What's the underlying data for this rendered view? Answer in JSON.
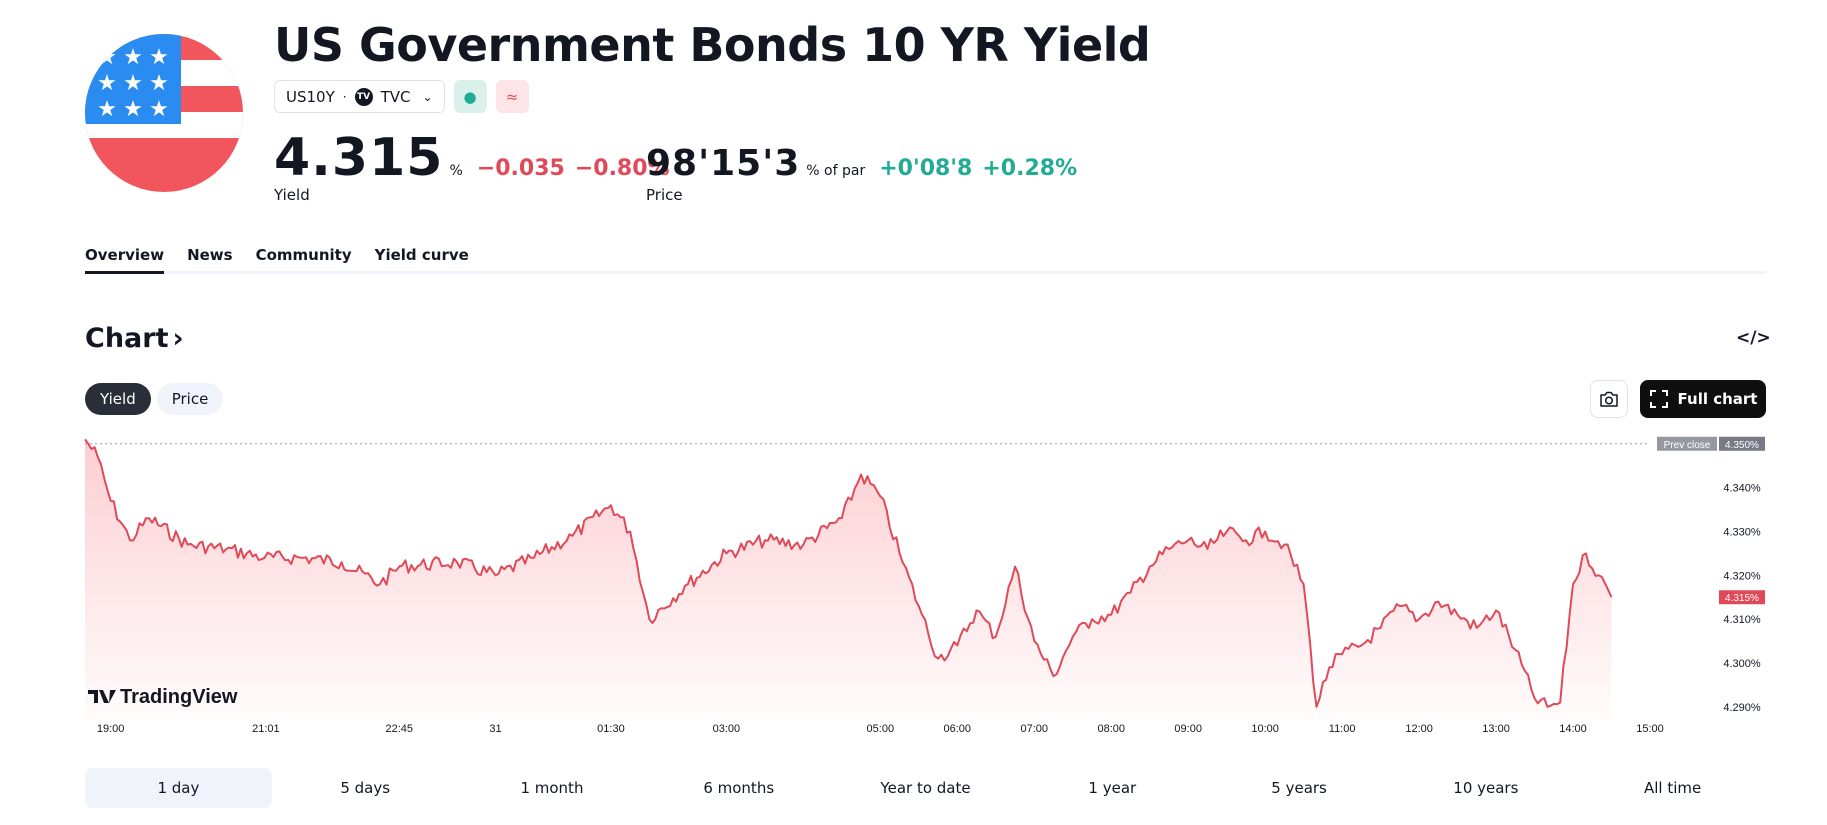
{
  "header": {
    "title": "US Government Bonds 10 YR Yield",
    "flag_icon": "us-flag-icon",
    "ticker": "US10Y",
    "separator": "·",
    "exchange": "TVC",
    "exchange_badge": "TV",
    "market_status_icon": "●",
    "delay_icon": "≈"
  },
  "yield_quote": {
    "value": "4.315",
    "unit": "%",
    "change": "−0.035",
    "change_percent": "−0.80%",
    "label": "Yield"
  },
  "price_quote": {
    "value": "98'15'3",
    "unit": "% of par",
    "change": "+0'08'8",
    "change_percent": "+0.28%",
    "label": "Price"
  },
  "tabs": [
    "Overview",
    "News",
    "Community",
    "Yield curve"
  ],
  "active_tab": "Overview",
  "chart_section": {
    "heading": "Chart",
    "heading_chevron": "›",
    "embed_icon": "</>",
    "toggles": [
      "Yield",
      "Price"
    ],
    "active_toggle": "Yield",
    "full_chart_label": "Full chart"
  },
  "chart_data": {
    "type": "area",
    "title": "",
    "xlabel": "",
    "ylabel": "",
    "y_unit": "%",
    "ylim": [
      4.287,
      4.352
    ],
    "y_ticks": [
      "4.290%",
      "4.300%",
      "4.310%",
      "4.320%",
      "4.330%",
      "4.340%"
    ],
    "x_ticks": [
      "19:00",
      "21:01",
      "22:45",
      "31",
      "01:30",
      "03:00",
      "05:00",
      "06:00",
      "07:00",
      "08:00",
      "09:00",
      "10:00",
      "11:00",
      "12:00",
      "13:00",
      "14:00",
      "15:00"
    ],
    "prev_close": {
      "label": "Prev close",
      "value": 4.35,
      "text": "4.350%"
    },
    "last": {
      "value": 4.315,
      "text": "4.315%"
    },
    "line_color": "#e04a58",
    "watermark": "TradingView",
    "series": [
      {
        "time": [
          "18:40",
          "18:50",
          "19:00",
          "19:15",
          "19:30",
          "20:00",
          "20:30",
          "21:00",
          "21:30",
          "22:00",
          "22:30",
          "22:45",
          "23:30",
          "00:00",
          "00:30",
          "01:00",
          "01:30",
          "01:45",
          "02:00",
          "02:30",
          "03:00",
          "03:30",
          "04:00",
          "04:30",
          "04:45",
          "05:00",
          "05:15",
          "05:30",
          "05:45",
          "06:00",
          "06:15",
          "06:30",
          "06:45",
          "07:00",
          "07:15",
          "07:30",
          "07:45",
          "08:00",
          "08:15",
          "08:30",
          "08:45",
          "09:00",
          "09:15",
          "09:30",
          "09:45",
          "10:00",
          "10:15",
          "10:30",
          "10:40",
          "10:50",
          "11:00",
          "11:15",
          "11:30",
          "11:45",
          "12:00",
          "12:15",
          "12:30",
          "12:45",
          "13:00",
          "13:15",
          "13:30",
          "13:40",
          "13:50",
          "14:00",
          "14:10",
          "14:20",
          "14:30"
        ],
        "values": [
          4.351,
          4.347,
          4.337,
          4.328,
          4.333,
          4.327,
          4.326,
          4.324,
          4.324,
          4.323,
          4.318,
          4.322,
          4.323,
          4.32,
          4.324,
          4.329,
          4.336,
          4.33,
          4.31,
          4.318,
          4.325,
          4.328,
          4.327,
          4.333,
          4.343,
          4.338,
          4.325,
          4.313,
          4.301,
          4.304,
          4.312,
          4.306,
          4.322,
          4.305,
          4.297,
          4.306,
          4.31,
          4.311,
          4.316,
          4.322,
          4.326,
          4.328,
          4.326,
          4.33,
          4.328,
          4.33,
          4.327,
          4.318,
          4.29,
          4.299,
          4.302,
          4.304,
          4.308,
          4.313,
          4.31,
          4.314,
          4.311,
          4.308,
          4.312,
          4.303,
          4.292,
          4.29,
          4.291,
          4.318,
          4.325,
          4.32,
          4.315
        ]
      }
    ]
  },
  "ranges": [
    "1 day",
    "5 days",
    "1 month",
    "6 months",
    "Year to date",
    "1 year",
    "5 years",
    "10 years",
    "All time"
  ],
  "active_range": "1 day"
}
